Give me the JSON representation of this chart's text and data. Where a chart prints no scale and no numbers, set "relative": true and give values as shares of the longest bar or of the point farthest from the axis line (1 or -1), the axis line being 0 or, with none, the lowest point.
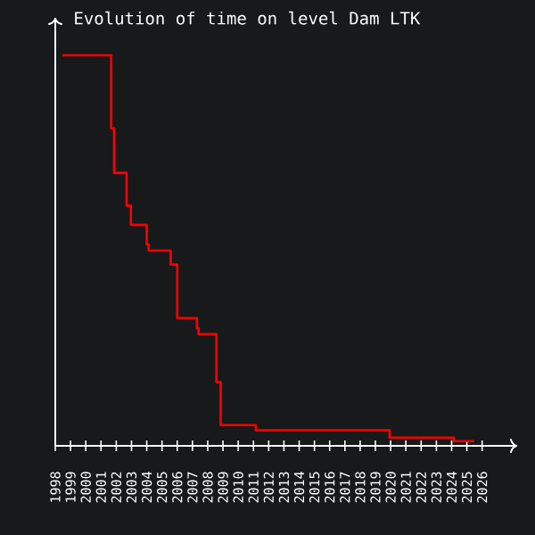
{
  "chart_data": {
    "type": "step",
    "title": "Evolution of time on level Dam LTK",
    "relative": true,
    "color": "#ff0000",
    "x": [
      1998.47,
      2001.67,
      2001.86,
      2002.68,
      2002.96,
      2004.0,
      2004.12,
      2005.57,
      2006.0,
      2007.29,
      2007.4,
      2008.57,
      2008.85,
      2011.15,
      2019.93,
      2024.15,
      2025.48
    ],
    "values": [
      1,
      0.813,
      0.699,
      0.615,
      0.566,
      0.516,
      0.5,
      0.464,
      0.327,
      0.301,
      0.286,
      0.163,
      0.053,
      0.04,
      0.021,
      0.012,
      0.012
    ],
    "xlim": [
      1998,
      2028.3
    ],
    "xticks": [
      1998,
      1999,
      2000,
      2001,
      2002,
      2003,
      2004,
      2005,
      2006,
      2007,
      2008,
      2009,
      2010,
      2011,
      2012,
      2013,
      2014,
      2015,
      2016,
      2017,
      2018,
      2019,
      2020,
      2021,
      2022,
      2023,
      2024,
      2025,
      2026
    ]
  }
}
